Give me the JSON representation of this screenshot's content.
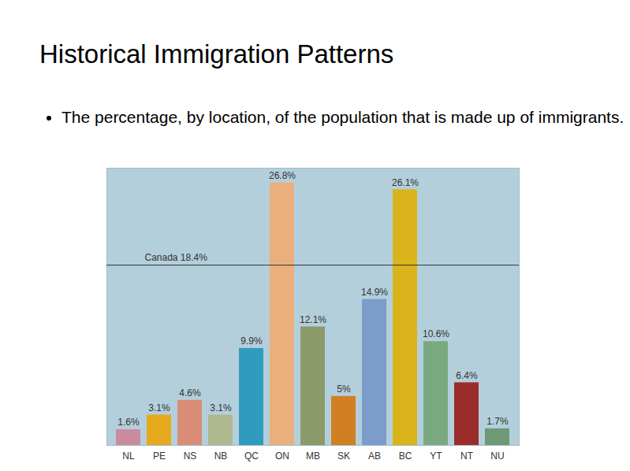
{
  "chart_data": {
    "type": "bar",
    "title": "Historical Immigration Patterns",
    "subtitle": "The percentage, by location, of the population that is made up of immigrants.",
    "categories": [
      "NL",
      "PE",
      "NS",
      "NB",
      "QC",
      "ON",
      "MB",
      "SK",
      "AB",
      "BC",
      "YT",
      "NT",
      "NU"
    ],
    "values": [
      1.6,
      3.1,
      4.6,
      3.1,
      9.9,
      26.8,
      12.1,
      5,
      14.9,
      26.1,
      10.6,
      6.4,
      1.7
    ],
    "value_labels": [
      "1.6%",
      "3.1%",
      "4.6%",
      "3.1%",
      "9.9%",
      "26.8%",
      "12.1%",
      "5%",
      "14.9%",
      "26.1%",
      "10.6%",
      "6.4%",
      "1.7%"
    ],
    "colors": [
      "#c98b9d",
      "#e6a81c",
      "#d98c76",
      "#b0b890",
      "#2f9bbf",
      "#e9b07e",
      "#8c9a6a",
      "#d07f22",
      "#7c9cc9",
      "#d9b41a",
      "#7aa980",
      "#9a2c2a",
      "#6d9a74"
    ],
    "ylim": [
      0,
      28.3
    ],
    "reference_line": {
      "label": "Canada 18.4%",
      "value": 18.4
    },
    "data_labels": true,
    "tick_labels": "x",
    "grid": false
  }
}
